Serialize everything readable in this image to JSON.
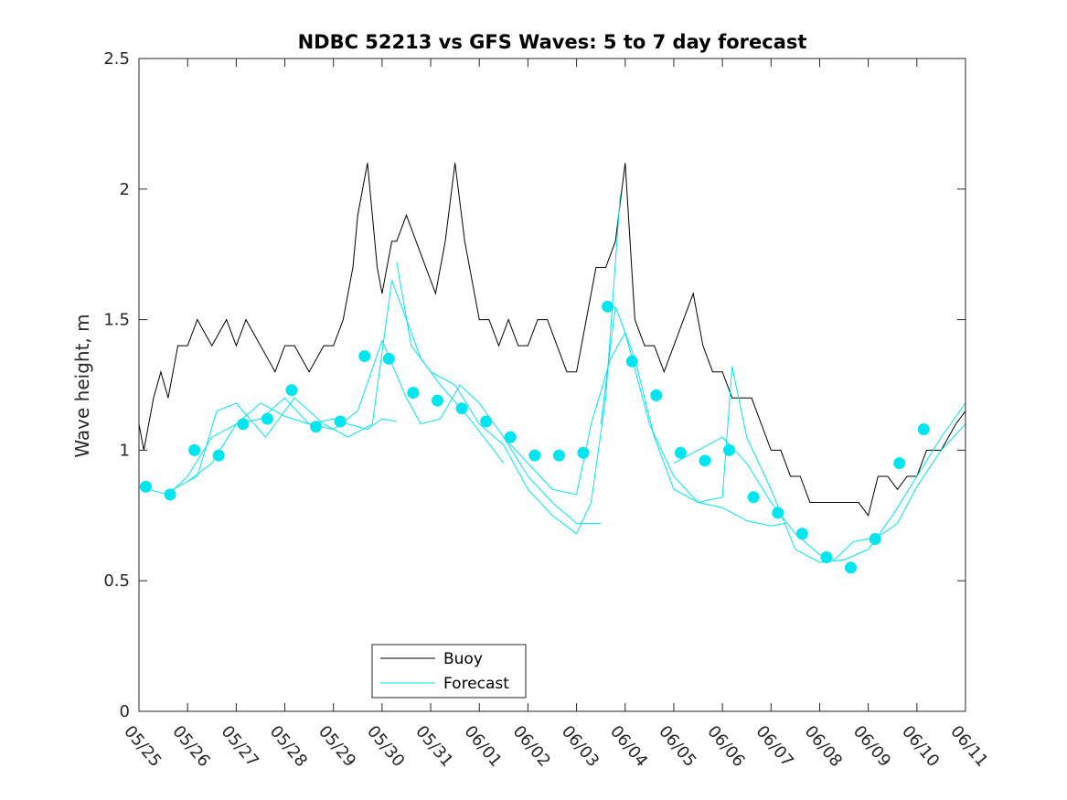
{
  "chart_data": {
    "type": "line",
    "title": "NDBC 52213 vs GFS Waves: 5 to 7 day forecast",
    "xlabel": "",
    "ylabel": "Wave height, m",
    "ylim": [
      0,
      2.5
    ],
    "yticks": [
      "0",
      "0.5",
      "1",
      "1.5",
      "2",
      "2.5"
    ],
    "xlim": [
      "05/25",
      "06/11"
    ],
    "xticks": [
      "05/25",
      "05/26",
      "05/27",
      "05/28",
      "05/29",
      "05/30",
      "05/31",
      "06/01",
      "06/02",
      "06/03",
      "06/04",
      "06/05",
      "06/06",
      "06/07",
      "06/08",
      "06/09",
      "06/10",
      "06/11"
    ],
    "grid": false,
    "legend_position": "bottom-center",
    "legend": [
      {
        "name": "Buoy",
        "color": "#000000"
      },
      {
        "name": "Forecast",
        "color": "#00e5ee"
      }
    ],
    "series": [
      {
        "name": "Buoy",
        "color": "#000000",
        "x_unit": "days since 05/25",
        "x": [
          0.0,
          0.1,
          0.2,
          0.3,
          0.45,
          0.6,
          0.8,
          1.0,
          1.2,
          1.5,
          1.8,
          2.0,
          2.2,
          2.5,
          2.8,
          3.0,
          3.2,
          3.5,
          3.8,
          4.0,
          4.2,
          4.3,
          4.4,
          4.5,
          4.6,
          4.7,
          4.8,
          4.9,
          5.0,
          5.1,
          5.2,
          5.3,
          5.5,
          5.7,
          5.9,
          6.1,
          6.3,
          6.5,
          6.7,
          6.8,
          6.9,
          7.0,
          7.2,
          7.4,
          7.6,
          7.8,
          8.0,
          8.2,
          8.4,
          8.6,
          8.8,
          9.0,
          9.2,
          9.4,
          9.6,
          9.8,
          10.0,
          10.2,
          10.4,
          10.6,
          10.8,
          11.0,
          11.2,
          11.4,
          11.6,
          11.8,
          12.0,
          12.2,
          12.4,
          12.6,
          12.8,
          13.0,
          13.2,
          13.4,
          13.6,
          13.8,
          14.0,
          14.2,
          14.5,
          14.8,
          15.0,
          15.2,
          15.4,
          15.6,
          15.8,
          16.0,
          16.2,
          16.5,
          16.8,
          17.0
        ],
        "y": [
          1.1,
          1.0,
          1.1,
          1.2,
          1.3,
          1.2,
          1.4,
          1.4,
          1.5,
          1.4,
          1.5,
          1.4,
          1.5,
          1.4,
          1.3,
          1.4,
          1.4,
          1.3,
          1.4,
          1.4,
          1.5,
          1.6,
          1.7,
          1.9,
          2.0,
          2.1,
          1.9,
          1.7,
          1.6,
          1.7,
          1.8,
          1.8,
          1.9,
          1.8,
          1.7,
          1.6,
          1.8,
          2.1,
          1.8,
          1.7,
          1.6,
          1.5,
          1.5,
          1.4,
          1.5,
          1.4,
          1.4,
          1.5,
          1.5,
          1.4,
          1.3,
          1.3,
          1.5,
          1.7,
          1.7,
          1.8,
          2.1,
          1.5,
          1.4,
          1.4,
          1.3,
          1.4,
          1.5,
          1.6,
          1.4,
          1.3,
          1.3,
          1.2,
          1.2,
          1.2,
          1.1,
          1.0,
          1.0,
          0.9,
          0.9,
          0.8,
          0.8,
          0.8,
          0.8,
          0.8,
          0.75,
          0.9,
          0.9,
          0.85,
          0.9,
          0.9,
          1.0,
          1.0,
          1.1,
          1.15
        ]
      },
      {
        "name": "Forecast",
        "color": "#00e5ee",
        "x_unit": "days since 05/25",
        "markers": {
          "x": [
            0.14,
            0.64,
            1.14,
            1.64,
            2.14,
            2.64,
            3.14,
            3.64,
            4.14,
            4.64,
            5.14,
            5.64,
            6.14,
            6.64,
            7.14,
            7.64,
            8.14,
            8.64,
            9.14,
            9.64,
            10.14,
            10.64,
            11.14,
            11.64,
            12.14,
            12.64,
            13.14,
            13.64,
            14.14,
            14.64,
            15.14,
            15.64,
            16.14
          ],
          "y": [
            0.86,
            0.83,
            1.0,
            0.98,
            1.1,
            1.12,
            1.23,
            1.09,
            1.11,
            1.36,
            1.35,
            1.22,
            1.19,
            1.16,
            1.11,
            1.05,
            0.98,
            0.98,
            0.99,
            1.55,
            1.34,
            1.21,
            0.99,
            0.96,
            1.0,
            0.82,
            0.76,
            0.68,
            0.59,
            0.55,
            0.66,
            0.95,
            1.08
          ]
        },
        "runs": [
          {
            "x": [
              0.0,
              0.6,
              1.0,
              1.5,
              2.0,
              2.5,
              3.0,
              3.5,
              4.0,
              4.3,
              4.7,
              5.0,
              5.3
            ],
            "y": [
              0.86,
              0.83,
              0.9,
              1.05,
              1.1,
              1.18,
              1.13,
              1.1,
              1.12,
              1.1,
              1.08,
              1.12,
              1.11
            ]
          },
          {
            "x": [
              0.6,
              1.2,
              1.6,
              2.0,
              2.6,
              3.2,
              3.8,
              4.3,
              4.8,
              5.2,
              5.5,
              5.8,
              6.2,
              6.8,
              7.3,
              7.5
            ],
            "y": [
              0.84,
              0.9,
              1.15,
              1.18,
              1.05,
              1.2,
              1.1,
              1.05,
              1.1,
              1.65,
              1.5,
              1.35,
              1.25,
              1.12,
              1.0,
              0.95
            ]
          },
          {
            "x": [
              1.0,
              1.5,
              2.0,
              2.5,
              3.0,
              3.5,
              4.0,
              4.5,
              5.0,
              5.5,
              5.8,
              6.2,
              6.6,
              7.0,
              7.5,
              8.0,
              8.5,
              9.0,
              9.5
            ],
            "y": [
              0.88,
              0.95,
              1.1,
              1.12,
              1.2,
              1.1,
              1.08,
              1.15,
              1.42,
              1.2,
              1.1,
              1.12,
              1.25,
              1.18,
              1.05,
              0.9,
              0.8,
              0.72,
              0.72
            ]
          },
          {
            "x": [
              5.3,
              5.6,
              6.0,
              6.5,
              7.0,
              7.5,
              8.0,
              8.5,
              9.0,
              9.3,
              9.6,
              9.9
            ],
            "y": [
              1.72,
              1.4,
              1.3,
              1.25,
              1.1,
              1.02,
              0.85,
              0.75,
              0.68,
              0.8,
              1.2,
              1.98
            ]
          },
          {
            "x": [
              7.5,
              8.0,
              8.5,
              9.0,
              9.3,
              9.7,
              10.0,
              10.5,
              11.0,
              11.5,
              12.0,
              12.5,
              13.0,
              13.3
            ],
            "y": [
              1.05,
              0.95,
              0.85,
              0.83,
              1.1,
              1.35,
              1.45,
              1.1,
              0.9,
              0.8,
              0.78,
              0.73,
              0.71,
              0.72
            ]
          },
          {
            "x": [
              9.5,
              9.8,
              10.2,
              10.6,
              11.0,
              11.5,
              12.0,
              12.2,
              12.5,
              13.0,
              13.5,
              14.0,
              14.5,
              15.0,
              15.5,
              16.0,
              16.5,
              17.0
            ],
            "y": [
              1.1,
              1.55,
              1.35,
              1.05,
              0.85,
              0.8,
              0.82,
              1.32,
              1.05,
              0.85,
              0.62,
              0.57,
              0.58,
              0.62,
              0.75,
              0.9,
              1.05,
              1.18
            ]
          },
          {
            "x": [
              11.0,
              11.5,
              12.0,
              12.5,
              13.0,
              13.5,
              14.0,
              14.3,
              14.7,
              15.0,
              15.3,
              15.6,
              16.0,
              16.5,
              17.0
            ],
            "y": [
              0.95,
              1.0,
              1.05,
              0.95,
              0.8,
              0.68,
              0.6,
              0.58,
              0.65,
              0.66,
              0.68,
              0.72,
              0.86,
              1.0,
              1.1
            ]
          }
        ]
      }
    ]
  }
}
